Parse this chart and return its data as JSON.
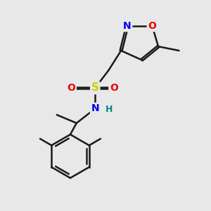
{
  "bg_color": "#e8e8e8",
  "bond_color": "#1a1a1a",
  "bond_width": 1.8,
  "atom_colors": {
    "N": "#0000ee",
    "O": "#ee0000",
    "S": "#cccc00",
    "H": "#008888",
    "C": "#1a1a1a"
  },
  "font_size_atom": 10,
  "figsize": [
    3.0,
    3.0
  ],
  "dpi": 100,
  "xlim": [
    0,
    10
  ],
  "ylim": [
    0,
    10
  ]
}
